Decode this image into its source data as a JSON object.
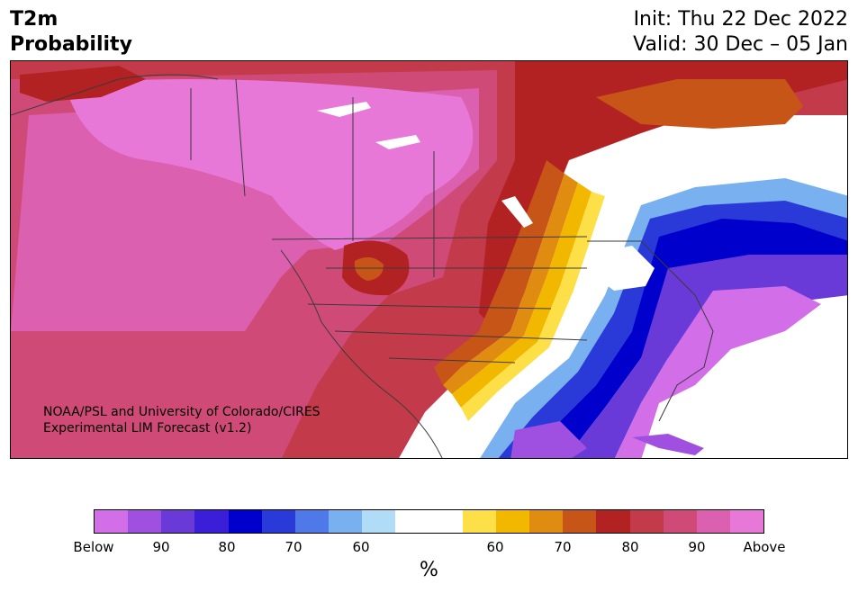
{
  "header": {
    "title_line1": "T2m",
    "title_line2": "Probability",
    "init_text": "Init: Thu 22 Dec 2022",
    "valid_text": "Valid: 30 Dec – 05 Jan"
  },
  "credit": {
    "line1": "NOAA/PSL and University of Colorado/CIRES",
    "line2": "Experimental LIM Forecast (v1.2)"
  },
  "colorbar": {
    "unit": "%",
    "colors": [
      "#d26ee8",
      "#a050e0",
      "#6a3ad8",
      "#3a1ed8",
      "#0000cd",
      "#2a3ad8",
      "#4f78e8",
      "#78b0f0",
      "#b0dcf8",
      "#ffffff",
      "#ffffff",
      "#fde047",
      "#f2b800",
      "#e08c10",
      "#c85518",
      "#b22222",
      "#c33a4a",
      "#d04a78",
      "#dc60b0",
      "#e878d8"
    ],
    "tick_labels": [
      "Below",
      "90",
      "80",
      "70",
      "60",
      "60",
      "70",
      "80",
      "90",
      "Above"
    ]
  },
  "palette": {
    "above_max": "#e878d8",
    "above_90": "#dc60b0",
    "above_85": "#d04a78",
    "above_80": "#c33a4a",
    "above_75": "#b22222",
    "above_70": "#c85518",
    "above_65": "#e08c10",
    "above_60": "#f2b800",
    "above_55": "#fde047",
    "neutral": "#ffffff",
    "below_55": "#b0dcf8",
    "below_60": "#78b0f0",
    "below_65": "#4f78e8",
    "below_70": "#2a3ad8",
    "below_75": "#0000cd",
    "below_80": "#3a1ed8",
    "below_85": "#6a3ad8",
    "below_90": "#a050e0",
    "below_max": "#d26ee8"
  }
}
